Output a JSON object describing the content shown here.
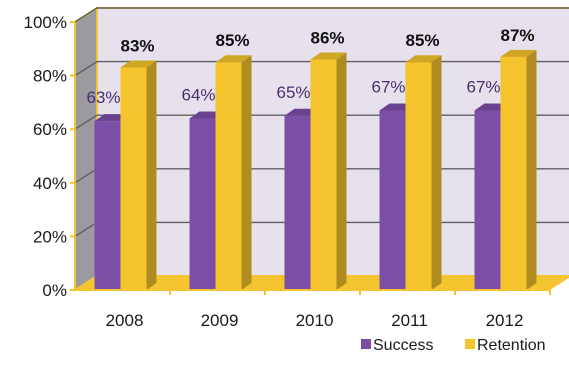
{
  "chart_data": {
    "type": "bar",
    "categories": [
      "2008",
      "2009",
      "2010",
      "2011",
      "2012"
    ],
    "series": [
      {
        "name": "Success",
        "values": [
          63,
          64,
          65,
          67,
          67
        ],
        "labels": [
          "63%",
          "64%",
          "65%",
          "67%",
          "67%"
        ],
        "color": "#7b4fa8"
      },
      {
        "name": "Retention",
        "values": [
          83,
          85,
          86,
          85,
          87
        ],
        "labels": [
          "83%",
          "85%",
          "86%",
          "85%",
          "87%"
        ],
        "color": "#f5c32c"
      }
    ],
    "yticks": [
      "0%",
      "20%",
      "40%",
      "60%",
      "80%",
      "100%"
    ],
    "ylim": [
      0,
      100
    ],
    "grid": true,
    "legend": "bottom-right",
    "style": "3d-clustered-column",
    "colors": {
      "back_wall": "#e6e1ec",
      "side_wall": "#9a9aa0",
      "floor": "#f4c431",
      "gridline": "#606060"
    }
  }
}
